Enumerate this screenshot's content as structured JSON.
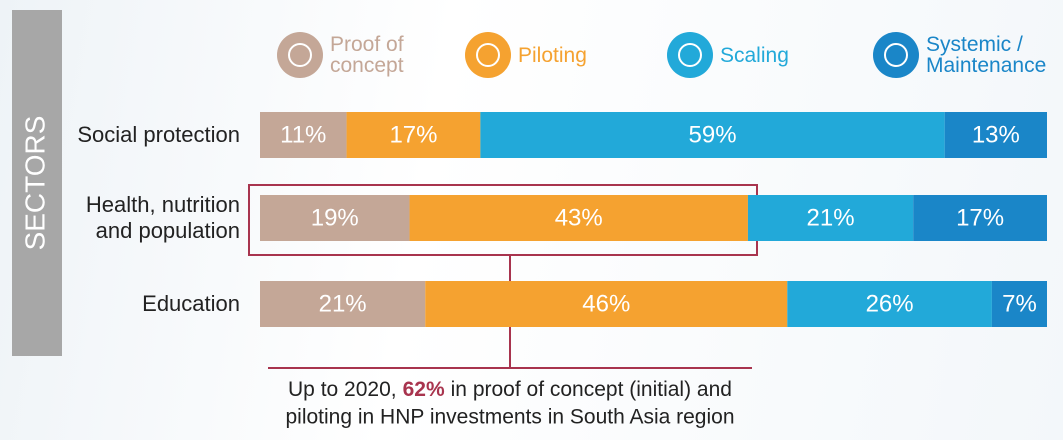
{
  "chart_data": {
    "type": "bar",
    "orientation": "horizontal",
    "stacked": true,
    "y_label": "SECTORS",
    "categories": [
      "Social protection",
      "Health, nutrition and population",
      "Education"
    ],
    "xlim": [
      0,
      100
    ],
    "series": [
      {
        "name": "Proof of concept",
        "color": "#c4a797",
        "values": [
          11,
          19,
          21
        ],
        "value_labels": [
          "11%",
          "19%",
          "21%"
        ]
      },
      {
        "name": "Piloting",
        "color": "#f5a230",
        "values": [
          17,
          43,
          46
        ],
        "value_labels": [
          "17%",
          "43%",
          "46%"
        ]
      },
      {
        "name": "Scaling",
        "color": "#22a9d9",
        "values": [
          59,
          21,
          26
        ],
        "value_labels": [
          "59%",
          "21%",
          "26%"
        ]
      },
      {
        "name": "Systemic / Maintenance",
        "color": "#1a86c8",
        "values": [
          13,
          17,
          7
        ],
        "value_labels": [
          "13%",
          "17%",
          "7%"
        ]
      }
    ],
    "annotation": {
      "before": "Up to 2020,",
      "highlight": "62%",
      "after": "in proof of concept (initial) and",
      "line2": "piloting in HNP investments in South Asia region"
    }
  }
}
